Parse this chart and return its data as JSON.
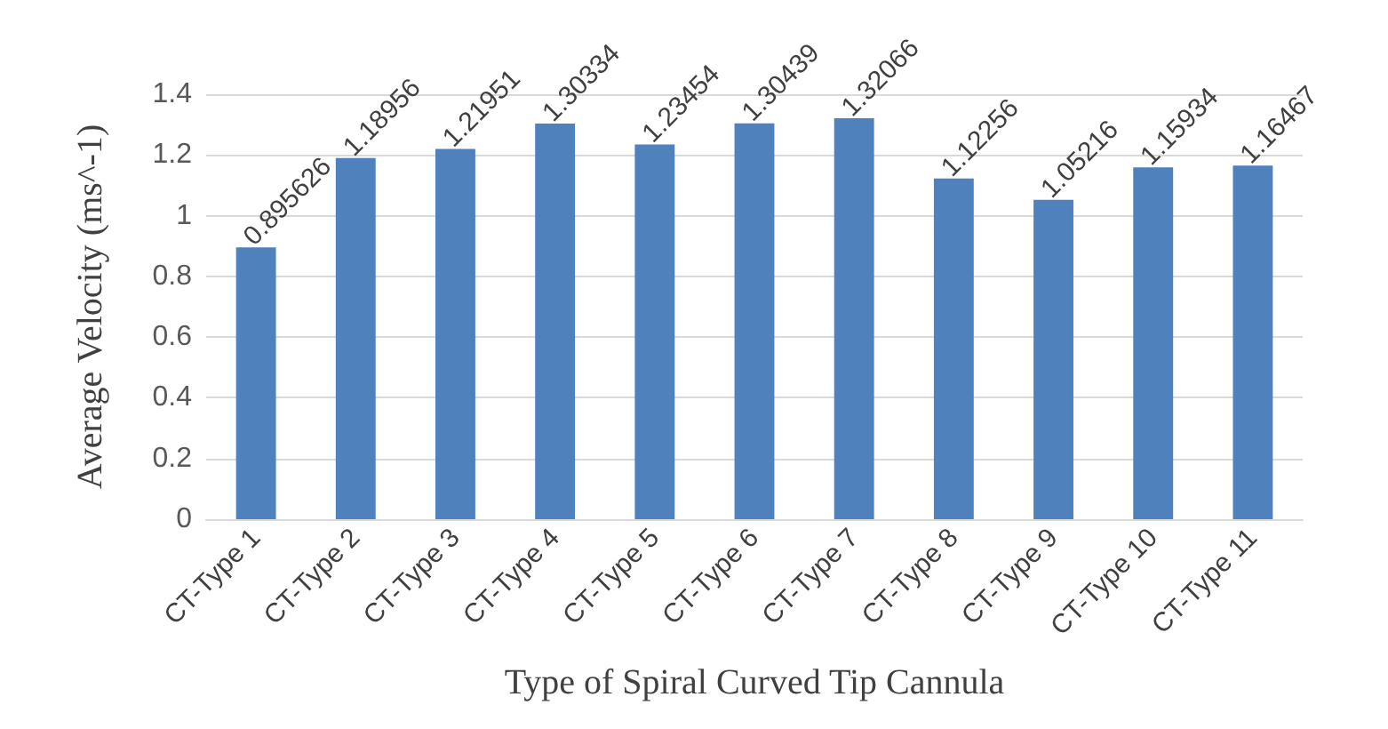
{
  "chart_data": {
    "type": "bar",
    "xlabel": "Type of Spiral Curved Tip Cannula",
    "ylabel": "Average Velocity (ms^-1)",
    "categories": [
      "CT-Type 1",
      "CT-Type 2",
      "CT-Type 3",
      "CT-Type 4",
      "CT-Type 5",
      "CT-Type 6",
      "CT-Type 7",
      "CT-Type 8",
      "CT-Type 9",
      "CT-Type 10",
      "CT-Type 11"
    ],
    "values": [
      0.895626,
      1.18956,
      1.21951,
      1.30334,
      1.23454,
      1.30439,
      1.32066,
      1.12256,
      1.05216,
      1.15934,
      1.16467
    ],
    "color": "#4f81bd",
    "ylim": [
      0,
      1.4
    ],
    "yticks": [
      0,
      0.2,
      0.4,
      0.6,
      0.8,
      1,
      1.2,
      1.4
    ],
    "grid": "y",
    "data_labels": true
  }
}
